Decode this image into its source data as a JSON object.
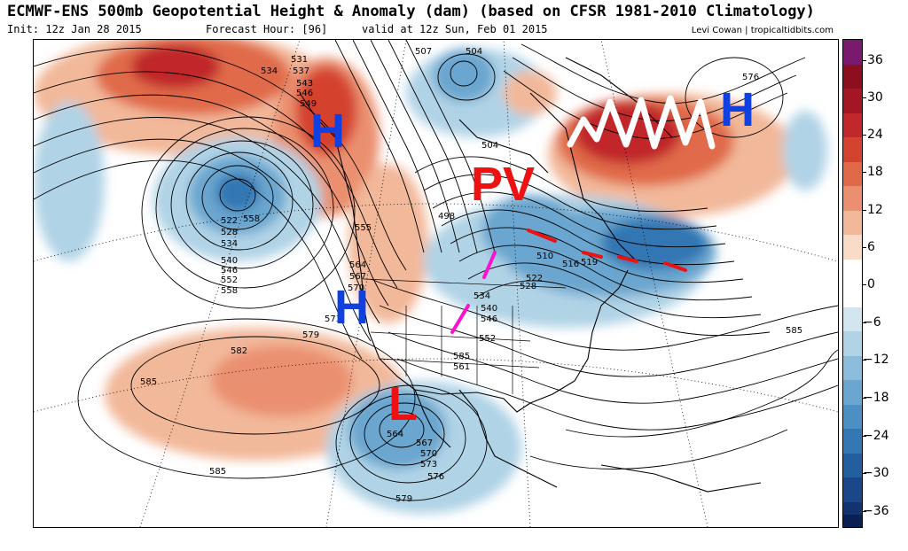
{
  "header": {
    "title": "ECMWF-ENS 500mb Geopotential Height & Anomaly (dam) (based on CFSR 1981-2010 Climatology)",
    "init": "Init: 12z Jan 28 2015",
    "forecast_hour": "Forecast Hour: [96]",
    "valid": "valid at 12z Sun, Feb 01 2015",
    "credit": "Levi Cowan | tropicaltidbits.com"
  },
  "colorbar": {
    "labels": [
      "36",
      "30",
      "24",
      "18",
      "12",
      "6",
      "0",
      "−6",
      "−12",
      "−18",
      "−24",
      "−30",
      "−36"
    ],
    "colors": [
      "#7a1a6e",
      "#8b0f1f",
      "#a31724",
      "#c0282b",
      "#d4432f",
      "#e06a48",
      "#ea9070",
      "#f2b89a",
      "#f9dcc8",
      "#ffffff",
      "#d3e6f0",
      "#b0d3e6",
      "#8cbcdb",
      "#6aa6cf",
      "#4c8fc3",
      "#3377b3",
      "#235f9e",
      "#194788",
      "#12336e",
      "#0a1f52"
    ]
  },
  "annotations": {
    "h_west_coast_upper": "H",
    "h_west_coast_lower": "H",
    "h_atlantic": "H",
    "pv": "PV",
    "l_southwest": "L"
  },
  "contour_labels": [
    "531",
    "537",
    "534",
    "543",
    "546",
    "549",
    "507",
    "504",
    "504",
    "498",
    "510",
    "516",
    "519",
    "522",
    "528",
    "534",
    "540",
    "546",
    "552",
    "558",
    "522",
    "528",
    "534",
    "540",
    "546",
    "552",
    "558",
    "555",
    "564",
    "567",
    "570",
    "573",
    "579",
    "582",
    "585",
    "585",
    "585",
    "561",
    "564",
    "567",
    "570",
    "573",
    "576",
    "579",
    "576",
    "585"
  ],
  "colors": {
    "annotation_blue": "#1040e0",
    "annotation_red": "#ee1111",
    "squiggle": "#ffffff",
    "magenta_marks": "#ff10d0"
  }
}
